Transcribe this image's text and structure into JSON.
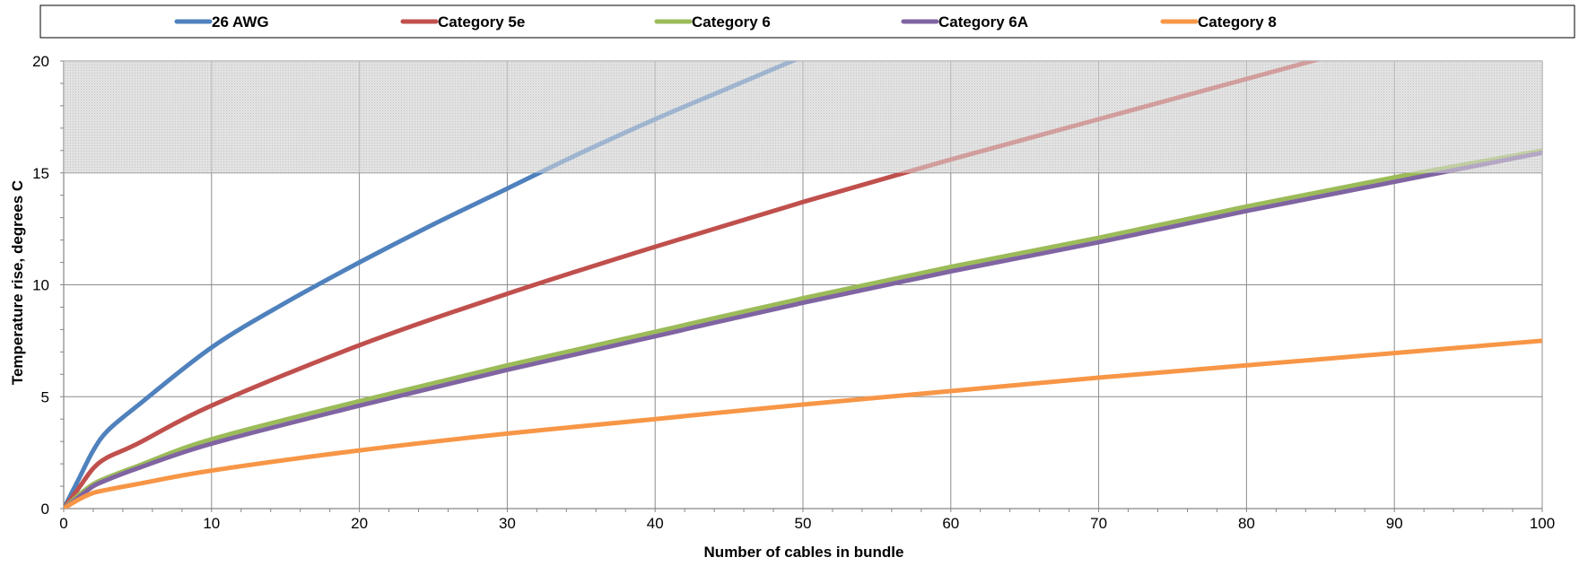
{
  "chart_data": {
    "type": "line",
    "title": "",
    "xlabel": "Number of cables in bundle",
    "ylabel": "Temperature rise, degrees C",
    "xlim": [
      0,
      100
    ],
    "ylim": [
      0,
      20
    ],
    "xticks": [
      "0",
      "10",
      "20",
      "30",
      "40",
      "50",
      "60",
      "70",
      "80",
      "90",
      "100"
    ],
    "yticks": [
      "0",
      "5",
      "10",
      "15",
      "20"
    ],
    "grid": true,
    "legend_position": "top",
    "shaded_region": {
      "y_from": 15,
      "y_to": 20,
      "color": "#d4d4d4"
    },
    "series": [
      {
        "name": "26 AWG",
        "color": "#4f81bd",
        "points": [
          [
            0,
            0
          ],
          [
            1,
            1.3
          ],
          [
            2,
            2.6
          ],
          [
            3,
            3.5
          ],
          [
            5,
            4.6
          ],
          [
            10,
            7.2
          ],
          [
            15,
            9.2
          ],
          [
            20,
            11.0
          ],
          [
            25,
            12.7
          ],
          [
            30,
            14.3
          ],
          [
            35,
            15.9
          ],
          [
            40,
            17.4
          ],
          [
            45,
            18.8
          ],
          [
            50,
            20.2
          ]
        ]
      },
      {
        "name": "Category 5e",
        "color": "#c0504d",
        "points": [
          [
            0,
            0
          ],
          [
            1,
            0.9
          ],
          [
            2,
            1.8
          ],
          [
            3,
            2.3
          ],
          [
            5,
            2.9
          ],
          [
            10,
            4.6
          ],
          [
            20,
            7.3
          ],
          [
            30,
            9.6
          ],
          [
            40,
            11.7
          ],
          [
            50,
            13.7
          ],
          [
            60,
            15.6
          ],
          [
            70,
            17.4
          ],
          [
            80,
            19.2
          ],
          [
            85,
            20.1
          ]
        ]
      },
      {
        "name": "Category 6",
        "color": "#9bbb59",
        "points": [
          [
            0,
            0
          ],
          [
            1,
            0.6
          ],
          [
            2,
            1.1
          ],
          [
            3,
            1.4
          ],
          [
            5,
            1.9
          ],
          [
            10,
            3.1
          ],
          [
            20,
            4.8
          ],
          [
            30,
            6.4
          ],
          [
            40,
            7.9
          ],
          [
            50,
            9.4
          ],
          [
            60,
            10.8
          ],
          [
            70,
            12.1
          ],
          [
            80,
            13.5
          ],
          [
            90,
            14.8
          ],
          [
            100,
            16.0
          ]
        ]
      },
      {
        "name": "Category 6A",
        "color": "#8064a2",
        "points": [
          [
            0,
            0
          ],
          [
            1,
            0.5
          ],
          [
            2,
            1.0
          ],
          [
            3,
            1.3
          ],
          [
            5,
            1.8
          ],
          [
            10,
            2.9
          ],
          [
            20,
            4.6
          ],
          [
            30,
            6.2
          ],
          [
            40,
            7.7
          ],
          [
            50,
            9.2
          ],
          [
            60,
            10.6
          ],
          [
            70,
            11.9
          ],
          [
            80,
            13.3
          ],
          [
            90,
            14.6
          ],
          [
            100,
            15.9
          ]
        ]
      },
      {
        "name": "Category 8",
        "color": "#f79646",
        "points": [
          [
            0,
            0
          ],
          [
            1,
            0.4
          ],
          [
            2,
            0.7
          ],
          [
            3,
            0.85
          ],
          [
            5,
            1.1
          ],
          [
            10,
            1.7
          ],
          [
            20,
            2.6
          ],
          [
            30,
            3.35
          ],
          [
            40,
            4.0
          ],
          [
            50,
            4.65
          ],
          [
            60,
            5.25
          ],
          [
            70,
            5.85
          ],
          [
            80,
            6.4
          ],
          [
            90,
            6.95
          ],
          [
            100,
            7.5
          ]
        ]
      }
    ]
  }
}
